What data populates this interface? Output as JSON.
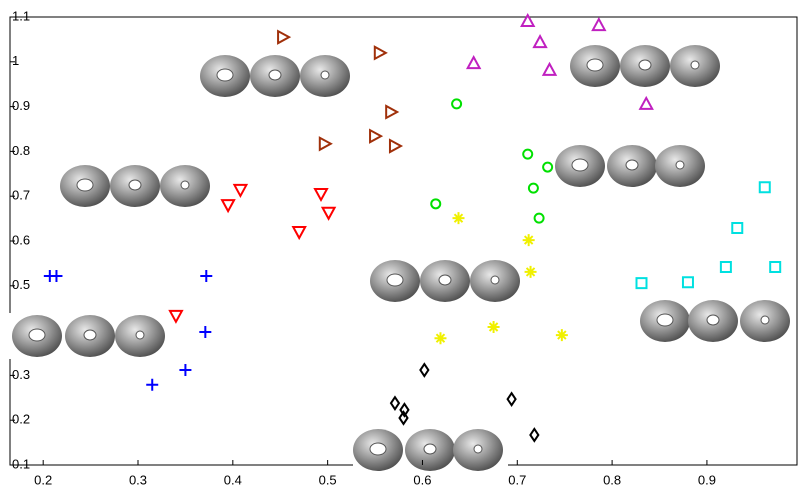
{
  "chart_data": {
    "type": "scatter",
    "xlim": [
      0.165,
      0.995
    ],
    "ylim": [
      0.1,
      1.1
    ],
    "xticks": [
      0.2,
      0.3,
      0.4,
      0.5,
      0.6,
      0.7,
      0.8,
      0.9
    ],
    "yticks": [
      0.1,
      0.2,
      0.3,
      0.5,
      0.6,
      0.7,
      0.8,
      0.9,
      1,
      1.1
    ],
    "series": [
      {
        "color": "#0000ff",
        "marker": "plus",
        "x": [
          0.207,
          0.214,
          0.372,
          0.371,
          0.35,
          0.315
        ],
        "values": [
          0.522,
          0.522,
          0.522,
          0.397,
          0.312,
          0.279
        ]
      },
      {
        "color": "#ff0000",
        "marker": "triangle-down",
        "x": [
          0.408,
          0.395,
          0.493,
          0.501,
          0.47,
          0.34
        ],
        "values": [
          0.714,
          0.68,
          0.705,
          0.663,
          0.62,
          0.433
        ]
      },
      {
        "color": "#a0300a",
        "marker": "triangle-right",
        "x": [
          0.453,
          0.555,
          0.567,
          0.497,
          0.55,
          0.571
        ],
        "values": [
          1.055,
          1.02,
          0.888,
          0.817,
          0.834,
          0.812
        ]
      },
      {
        "color": "#c020c0",
        "marker": "triangle-up",
        "x": [
          0.711,
          0.786,
          0.724,
          0.654,
          0.734,
          0.836
        ],
        "values": [
          1.091,
          1.082,
          1.044,
          0.997,
          0.982,
          0.906
        ]
      },
      {
        "color": "#00e000",
        "marker": "circle",
        "x": [
          0.636,
          0.711,
          0.732,
          0.717,
          0.723,
          0.614
        ],
        "values": [
          0.906,
          0.794,
          0.765,
          0.718,
          0.651,
          0.683
        ]
      },
      {
        "color": "#f0f000",
        "marker": "star",
        "x": [
          0.638,
          0.712,
          0.714,
          0.675,
          0.747,
          0.619
        ],
        "values": [
          0.651,
          0.602,
          0.531,
          0.408,
          0.39,
          0.383
        ]
      },
      {
        "color": "#000000",
        "marker": "diamond",
        "x": [
          0.602,
          0.571,
          0.581,
          0.58,
          0.694,
          0.718
        ],
        "values": [
          0.312,
          0.238,
          0.223,
          0.205,
          0.247,
          0.167
        ]
      },
      {
        "color": "#00e0e0",
        "marker": "square",
        "x": [
          0.831,
          0.88,
          0.92,
          0.932,
          0.961,
          0.972
        ],
        "values": [
          0.506,
          0.508,
          0.542,
          0.629,
          0.72,
          0.542
        ]
      }
    ]
  }
}
